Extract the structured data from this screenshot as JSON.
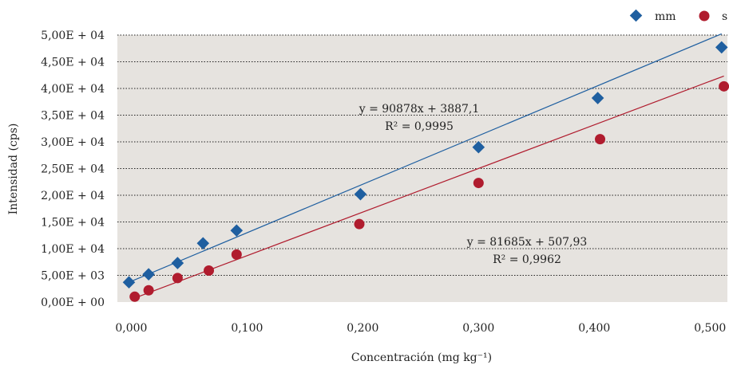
{
  "chart_data": {
    "type": "scatter",
    "xlabel": "Concentración (mg kg⁻¹)",
    "ylabel": "Intensidad (cps)",
    "xlim": [
      -0.012,
      0.515
    ],
    "ylim": [
      0,
      50000
    ],
    "x_ticks": [
      0.0,
      0.1,
      0.2,
      0.3,
      0.4,
      0.5
    ],
    "x_tick_labels": [
      "0,000",
      "0,100",
      "0,200",
      "0,300",
      "0,400",
      "0,500"
    ],
    "y_ticks": [
      0,
      5000,
      10000,
      15000,
      20000,
      25000,
      30000,
      35000,
      40000,
      45000,
      50000
    ],
    "y_tick_labels": [
      "0,00E + 00",
      "5,00E + 03",
      "1,00E + 04",
      "1,50E + 04",
      "2,00E + 04",
      "2,50E + 04",
      "3,00E + 04",
      "3,50E + 04",
      "4,00E + 04",
      "4,50E + 04",
      "5,00E + 04"
    ],
    "grid": "horizontal-dotted",
    "legend_position": "top-right",
    "series": [
      {
        "name": "mm",
        "marker": "diamond",
        "color": "#1f5fa0",
        "x": [
          -0.002,
          0.015,
          0.04,
          0.062,
          0.091,
          0.198,
          0.3,
          0.403,
          0.51
        ],
        "y": [
          3700,
          5200,
          7300,
          11000,
          13400,
          20200,
          29000,
          38200,
          47700
        ],
        "trendline": {
          "slope": 90878,
          "intercept": 3887.1
        },
        "equation": "y = 90878x + 3887,1",
        "r2": "R² = 0,9995"
      },
      {
        "name": "s",
        "marker": "circle",
        "color": "#b01c2e",
        "x": [
          0.003,
          0.015,
          0.04,
          0.067,
          0.091,
          0.197,
          0.3,
          0.405,
          0.512
        ],
        "y": [
          1000,
          2200,
          4500,
          5900,
          8900,
          14600,
          22300,
          30500,
          40400
        ],
        "trendline": {
          "slope": 81685,
          "intercept": 507.93
        },
        "equation": "y = 81685x + 507,93",
        "r2": "R² = 0,9962"
      }
    ]
  }
}
